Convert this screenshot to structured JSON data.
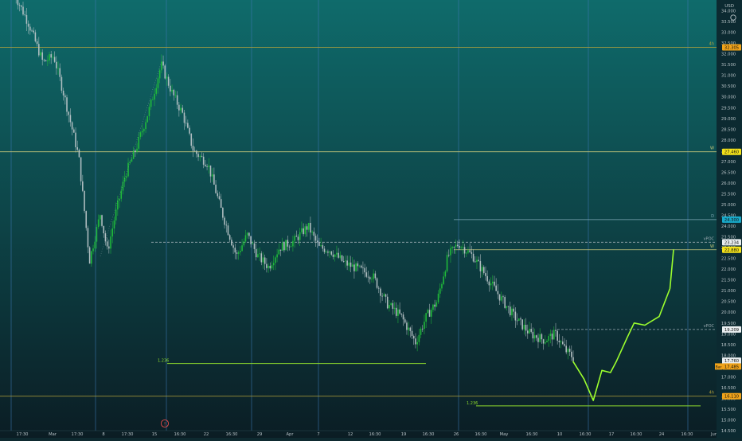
{
  "currency_label": "USD",
  "colors": {
    "bg_top": "#0f6b6b",
    "bg_bottom": "#0b1d24",
    "candle_up": "#21c13a",
    "candle_down": "#b9c4c8",
    "projection": "#9cff2e",
    "fib_line": "#8fdc2c",
    "level_4h": "#b3a23b",
    "level_w": "#c9c87a",
    "level_d": "#7fa9b6",
    "vpoc": "#9aa9b0",
    "vline": "#3d78b3",
    "badge_orange": "#f0a31a",
    "badge_yellow": "#f3e21a",
    "badge_teal": "#18a9c9",
    "badge_white": "#e9eef0"
  },
  "axis": {
    "ymin": 14.5,
    "ymax": 34.5,
    "ticks": [
      "34.000",
      "33.500",
      "33.000",
      "32.500",
      "32.000",
      "31.500",
      "31.000",
      "30.500",
      "30.000",
      "29.500",
      "29.000",
      "28.500",
      "28.000",
      "27.500",
      "27.000",
      "26.500",
      "26.000",
      "25.500",
      "25.000",
      "24.500",
      "24.000",
      "23.500",
      "23.000",
      "22.500",
      "22.000",
      "21.500",
      "21.000",
      "20.500",
      "20.000",
      "19.500",
      "19.000",
      "18.500",
      "18.000",
      "17.500",
      "17.000",
      "16.500",
      "16.000",
      "15.500",
      "15.000",
      "14.500"
    ]
  },
  "x_labels": [
    "17:30",
    "Mar",
    "17:30",
    "8",
    "17:30",
    "15",
    "16:30",
    "22",
    "16:30",
    "29",
    "Apr",
    "7",
    "12",
    "16:30",
    "19",
    "16:30",
    "26",
    "16:30",
    "May",
    "16:30",
    "10",
    "16:30",
    "17",
    "16:30",
    "24",
    "16:30",
    "Jun"
  ],
  "event_marker": "!",
  "levels": [
    {
      "name": "4h-top",
      "label": "4h",
      "value": 32.3,
      "badge": "32.305",
      "style": "4h"
    },
    {
      "name": "w-top",
      "label": "W",
      "value": 27.45,
      "badge": "27.460",
      "style": "w"
    },
    {
      "name": "d",
      "label": "D",
      "value": 24.3,
      "badge": "24.300",
      "style": "d"
    },
    {
      "name": "vpoc-top",
      "label": "vPOC",
      "value": 23.25,
      "badge": "23.234",
      "style": "vpoc"
    },
    {
      "name": "w-mid",
      "label": "W",
      "value": 22.9,
      "badge": "22.880",
      "style": "w"
    },
    {
      "name": "vpoc-low",
      "label": "vPOC",
      "value": 19.2,
      "badge": "19.209",
      "style": "vpoc"
    },
    {
      "name": "4h-low",
      "label": "4h",
      "value": 16.1,
      "badge": "16.110",
      "style": "4h"
    }
  ],
  "price_badges": [
    {
      "name": "last-price",
      "value": "17.760",
      "style": "white",
      "y": 17.75
    },
    {
      "name": "bar-close",
      "value": "17.485",
      "style": "orange",
      "prefix": "Bar",
      "y": 17.48
    }
  ],
  "fib_levels": [
    {
      "label": "1.236",
      "value": 17.62
    },
    {
      "label": "1.236",
      "value": 15.65
    }
  ],
  "chart_data": {
    "type": "candlestick",
    "ylim": [
      14.5,
      34.5
    ],
    "price_path": [
      [
        0.02,
        34.8
      ],
      [
        0.04,
        33.4
      ],
      [
        0.06,
        31.6
      ],
      [
        0.075,
        31.9
      ],
      [
        0.09,
        30.0
      ],
      [
        0.11,
        27.2
      ],
      [
        0.125,
        22.4
      ],
      [
        0.14,
        24.6
      ],
      [
        0.15,
        22.8
      ],
      [
        0.16,
        24.4
      ],
      [
        0.175,
        26.4
      ],
      [
        0.19,
        27.6
      ],
      [
        0.21,
        29.6
      ],
      [
        0.225,
        31.5
      ],
      [
        0.24,
        30.2
      ],
      [
        0.255,
        29.2
      ],
      [
        0.27,
        27.5
      ],
      [
        0.29,
        26.9
      ],
      [
        0.31,
        24.6
      ],
      [
        0.33,
        22.6
      ],
      [
        0.345,
        23.6
      ],
      [
        0.36,
        22.6
      ],
      [
        0.375,
        22.1
      ],
      [
        0.39,
        23.0
      ],
      [
        0.41,
        23.3
      ],
      [
        0.43,
        24.0
      ],
      [
        0.445,
        23.0
      ],
      [
        0.46,
        22.9
      ],
      [
        0.48,
        22.3
      ],
      [
        0.5,
        22.0
      ],
      [
        0.52,
        21.7
      ],
      [
        0.54,
        20.4
      ],
      [
        0.56,
        19.8
      ],
      [
        0.58,
        18.6
      ],
      [
        0.595,
        19.8
      ],
      [
        0.61,
        20.5
      ],
      [
        0.625,
        22.6
      ],
      [
        0.64,
        23.2
      ],
      [
        0.66,
        22.6
      ],
      [
        0.68,
        21.6
      ],
      [
        0.7,
        20.6
      ],
      [
        0.72,
        19.7
      ],
      [
        0.74,
        19.0
      ],
      [
        0.76,
        18.7
      ],
      [
        0.775,
        19.0
      ],
      [
        0.79,
        18.2
      ],
      [
        0.8,
        17.9
      ]
    ],
    "projection": [
      [
        0.8,
        17.7
      ],
      [
        0.815,
        16.9
      ],
      [
        0.828,
        15.9
      ],
      [
        0.84,
        17.3
      ],
      [
        0.852,
        17.2
      ],
      [
        0.86,
        17.7
      ],
      [
        0.875,
        18.8
      ],
      [
        0.885,
        19.5
      ],
      [
        0.9,
        19.4
      ],
      [
        0.92,
        19.8
      ],
      [
        0.935,
        21.1
      ],
      [
        0.94,
        22.9
      ]
    ]
  }
}
